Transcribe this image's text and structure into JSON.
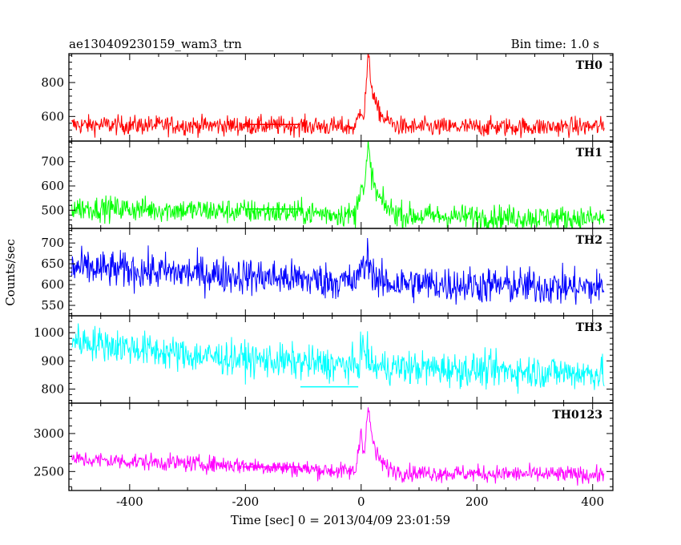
{
  "chart_data": {
    "type": "line",
    "title": "ae130409230159_wam3_trn",
    "subtitle": "Bin time: 1.0 s",
    "xlabel": "Time [sec] 0 = 2013/04/09 23:01:59",
    "ylabel": "Counts/sec",
    "xlim": [
      -505,
      435
    ],
    "xticks": [
      -400,
      -200,
      0,
      200,
      400
    ],
    "grid": false,
    "panels": [
      {
        "name": "TH0",
        "color": "#ff0000",
        "ylim": [
          455,
          970
        ],
        "yticks": [
          600,
          800
        ],
        "trend": [
          [
            -500,
            550
          ],
          [
            -100,
            545
          ],
          [
            0,
            535
          ],
          [
            420,
            540
          ]
        ],
        "noise": 28,
        "burst": [
          [
            -10,
            0
          ],
          [
            0,
            120
          ],
          [
            5,
            60
          ],
          [
            12,
            420
          ],
          [
            18,
            250
          ],
          [
            26,
            120
          ],
          [
            40,
            50
          ],
          [
            60,
            10
          ]
        ],
        "marker": {
          "x": [
            -205,
            -105
          ],
          "y": 553
        }
      },
      {
        "name": "TH1",
        "color": "#00ff00",
        "ylim": [
          425,
          785
        ],
        "yticks": [
          500,
          600,
          700
        ],
        "trend": [
          [
            -500,
            510
          ],
          [
            -100,
            490
          ],
          [
            0,
            480
          ],
          [
            420,
            465
          ]
        ],
        "noise": 25,
        "burst": [
          [
            -10,
            0
          ],
          [
            0,
            140
          ],
          [
            5,
            80
          ],
          [
            12,
            280
          ],
          [
            18,
            170
          ],
          [
            26,
            90
          ],
          [
            40,
            40
          ],
          [
            60,
            10
          ]
        ],
        "marker": {
          "x": [
            -200,
            -105
          ],
          "y": 505
        }
      },
      {
        "name": "TH2",
        "color": "#0000ff",
        "ylim": [
          525,
          735
        ],
        "yticks": [
          550,
          600,
          650,
          700
        ],
        "trend": [
          [
            -500,
            640
          ],
          [
            -250,
            625
          ],
          [
            0,
            605
          ],
          [
            420,
            592
          ]
        ],
        "noise": 22,
        "burst": [
          [
            -5,
            0
          ],
          [
            0,
            60
          ],
          [
            5,
            20
          ],
          [
            12,
            70
          ],
          [
            18,
            30
          ],
          [
            30,
            0
          ]
        ],
        "marker": null
      },
      {
        "name": "TH3",
        "color": "#00ffff",
        "ylim": [
          750,
          1060
        ],
        "yticks": [
          800,
          900,
          1000
        ],
        "trend": [
          [
            -500,
            975
          ],
          [
            -300,
            920
          ],
          [
            0,
            880
          ],
          [
            420,
            855
          ]
        ],
        "noise": 30,
        "burst": [
          [
            -5,
            0
          ],
          [
            0,
            70
          ],
          [
            10,
            40
          ],
          [
            20,
            0
          ]
        ],
        "marker": {
          "x": [
            -105,
            -5
          ],
          "y": 808
        }
      },
      {
        "name": "TH0123",
        "color": "#ff00ff",
        "ylim": [
          2250,
          3400
        ],
        "yticks": [
          2500,
          3000
        ],
        "trend": [
          [
            -500,
            2660
          ],
          [
            -200,
            2580
          ],
          [
            0,
            2490
          ],
          [
            420,
            2455
          ]
        ],
        "noise": 55,
        "burst": [
          [
            -10,
            0
          ],
          [
            0,
            550
          ],
          [
            5,
            250
          ],
          [
            12,
            850
          ],
          [
            18,
            500
          ],
          [
            26,
            240
          ],
          [
            40,
            90
          ],
          [
            60,
            20
          ]
        ],
        "marker": {
          "x": [
            -205,
            -105
          ],
          "y": 2560
        }
      }
    ]
  }
}
